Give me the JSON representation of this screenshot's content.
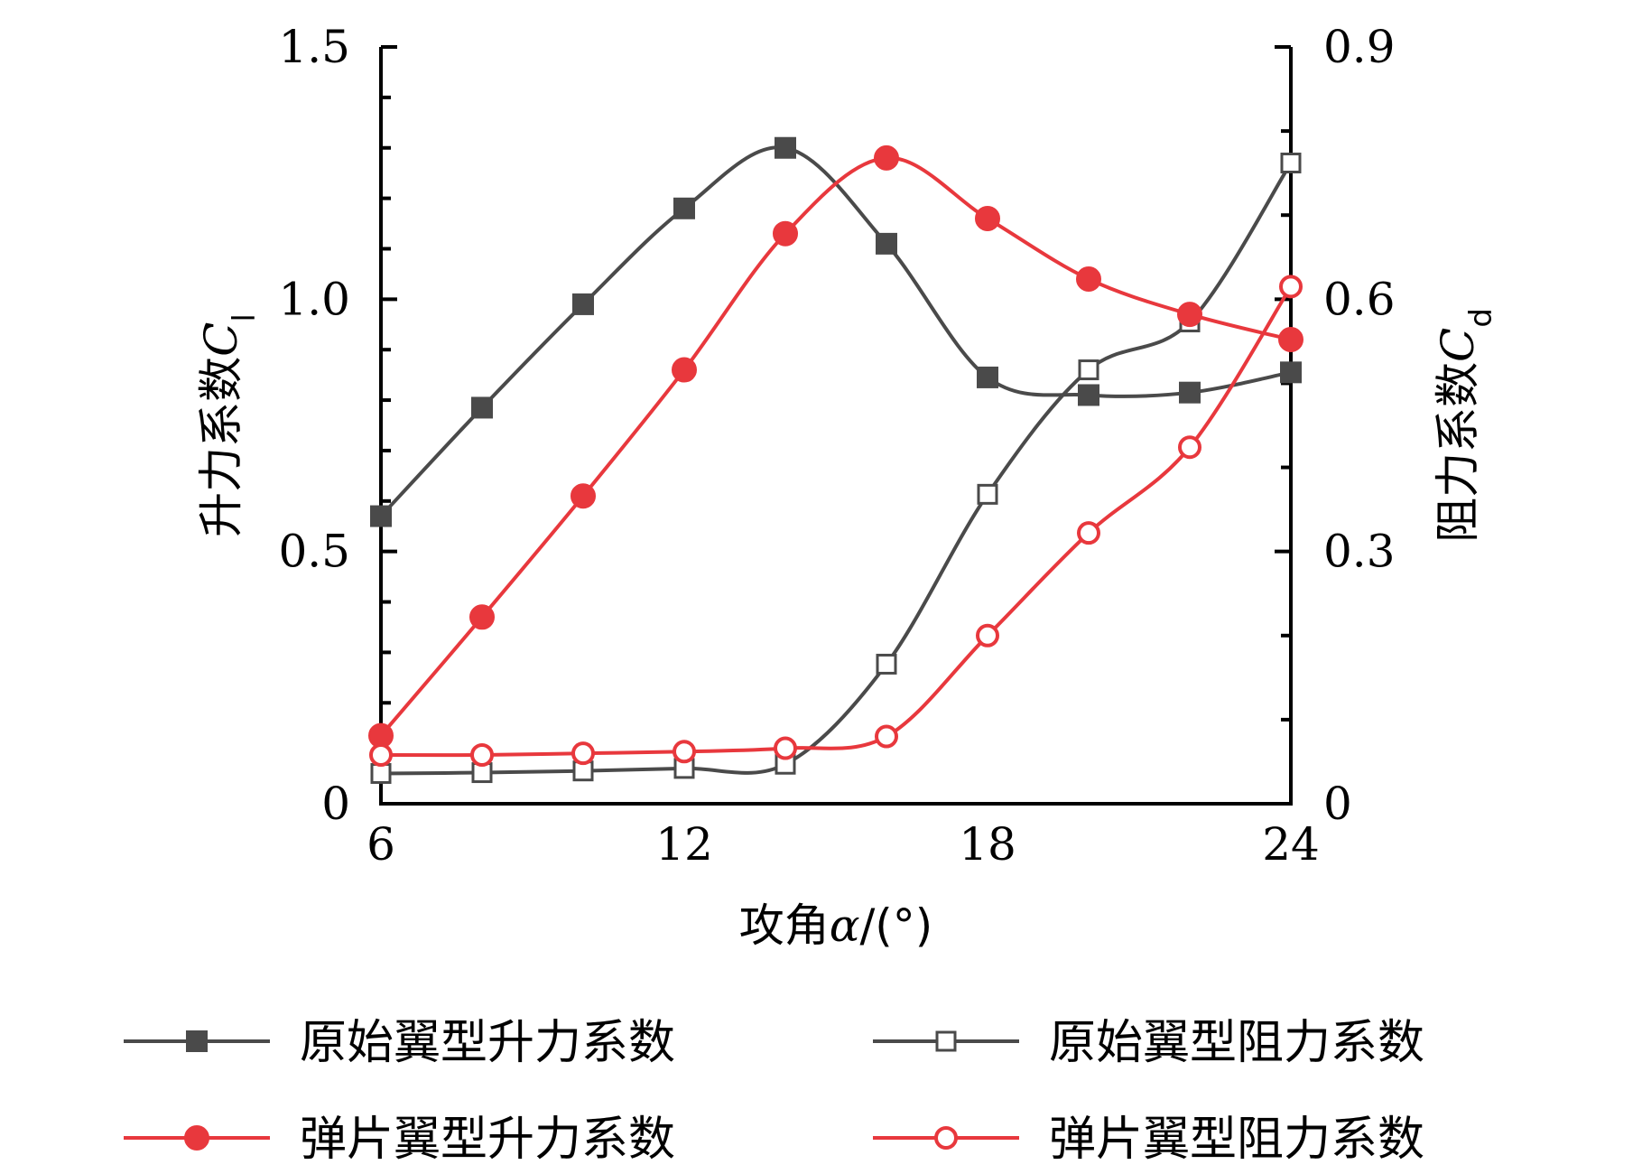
{
  "chart_data": {
    "type": "line",
    "xlabel": {
      "prefix": "攻角",
      "symbol": "α",
      "suffix": "/(°)"
    },
    "ylabel_left": {
      "text": "升力系数",
      "symbol": "C",
      "sub": "l"
    },
    "ylabel_right": {
      "text": "阻力系数",
      "symbol": "C",
      "sub": "d"
    },
    "xlim": [
      6,
      24
    ],
    "ylim_left": [
      0,
      1.5
    ],
    "ylim_right": [
      0,
      0.9
    ],
    "x_ticks": [
      "6",
      "12",
      "18",
      "24"
    ],
    "y_left_ticks": [
      "0",
      "0.5",
      "1.0",
      "1.5"
    ],
    "y_right_ticks": [
      "0",
      "0.3",
      "0.6",
      "0.9"
    ],
    "x": [
      6,
      8,
      10,
      12,
      14,
      16,
      18,
      20,
      22,
      24
    ],
    "series": [
      {
        "name": "原始翼型升力系数",
        "axis": "left",
        "color": "#4a4a4a",
        "marker": "square-filled",
        "values": [
          0.57,
          0.785,
          0.99,
          1.18,
          1.3,
          1.11,
          0.845,
          0.81,
          0.815,
          0.855
        ]
      },
      {
        "name": "原始翼型阻力系数",
        "axis": "right",
        "color": "#4a4a4a",
        "marker": "square-open",
        "values": [
          0.036,
          0.037,
          0.039,
          0.042,
          0.047,
          0.166,
          0.368,
          0.516,
          0.573,
          0.762
        ]
      },
      {
        "name": "弹片翼型升力系数",
        "axis": "left",
        "color": "#e8383d",
        "marker": "circle-filled",
        "values": [
          0.135,
          0.37,
          0.61,
          0.86,
          1.13,
          1.28,
          1.16,
          1.04,
          0.97,
          0.92
        ]
      },
      {
        "name": "弹片翼型阻力系数",
        "axis": "right",
        "color": "#e8383d",
        "marker": "circle-open",
        "values": [
          0.058,
          0.058,
          0.06,
          0.062,
          0.066,
          0.08,
          0.2,
          0.322,
          0.424,
          0.615
        ]
      }
    ]
  }
}
